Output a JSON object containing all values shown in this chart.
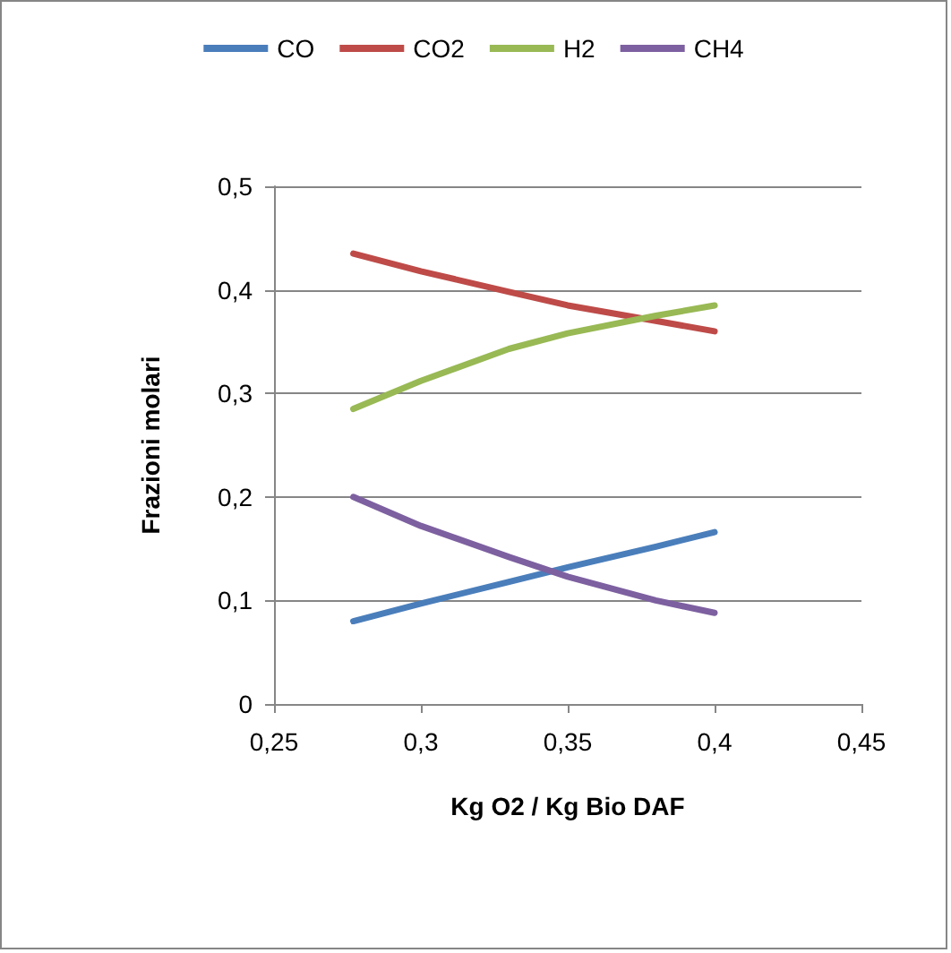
{
  "chart_data": {
    "type": "line",
    "xlabel": "Kg O2 / Kg Bio DAF",
    "ylabel": "Frazioni molari",
    "x": [
      0.277,
      0.3,
      0.33,
      0.35,
      0.38,
      0.4
    ],
    "series": [
      {
        "name": "CO",
        "color": "#4a7ebb",
        "values": [
          0.08,
          0.097,
          0.118,
          0.132,
          0.152,
          0.166
        ]
      },
      {
        "name": "CO2",
        "color": "#be4b48",
        "values": [
          0.435,
          0.418,
          0.398,
          0.385,
          0.37,
          0.36
        ]
      },
      {
        "name": "H2",
        "color": "#98b954",
        "values": [
          0.285,
          0.312,
          0.343,
          0.358,
          0.375,
          0.385
        ]
      },
      {
        "name": "CH4",
        "color": "#7d60a0",
        "values": [
          0.2,
          0.172,
          0.142,
          0.123,
          0.1,
          0.088
        ]
      }
    ],
    "xlim": [
      0.25,
      0.45
    ],
    "xticks": [
      {
        "value": 0.25,
        "label": "0,25"
      },
      {
        "value": 0.3,
        "label": "0,3"
      },
      {
        "value": 0.35,
        "label": "0,35"
      },
      {
        "value": 0.4,
        "label": "0,4"
      },
      {
        "value": 0.45,
        "label": "0,45"
      }
    ],
    "ylim": [
      0,
      0.5
    ],
    "yticks": [
      {
        "value": 0,
        "label": "0"
      },
      {
        "value": 0.1,
        "label": "0,1"
      },
      {
        "value": 0.2,
        "label": "0,2"
      },
      {
        "value": 0.3,
        "label": "0,3"
      },
      {
        "value": 0.4,
        "label": "0,4"
      },
      {
        "value": 0.5,
        "label": "0,5"
      }
    ],
    "grid": "y",
    "legend": "top",
    "marker": "none",
    "line_style": "solid"
  }
}
